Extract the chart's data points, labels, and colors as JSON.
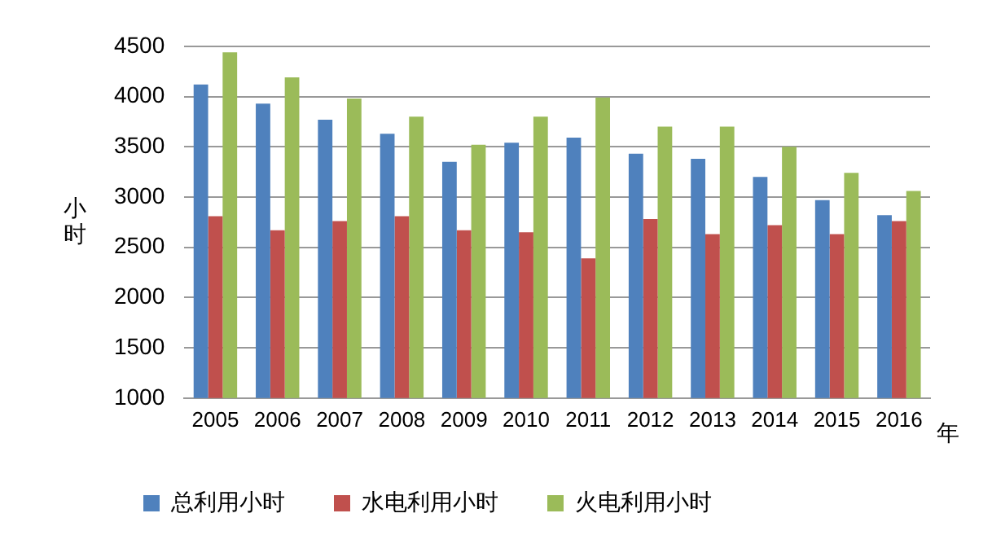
{
  "chart_data": {
    "type": "bar",
    "xlabel": "年",
    "ylabel": "小时",
    "categories": [
      "2005",
      "2006",
      "2007",
      "2008",
      "2009",
      "2010",
      "2011",
      "2012",
      "2013",
      "2014",
      "2015",
      "2016"
    ],
    "series": [
      {
        "name": "总利用小时",
        "color": "#4f81bd",
        "values": [
          4120,
          3930,
          3770,
          3630,
          3350,
          3540,
          3590,
          3430,
          3380,
          3200,
          2970,
          2820
        ]
      },
      {
        "name": "水电利用小时",
        "color": "#c0504d",
        "values": [
          2810,
          2670,
          2760,
          2810,
          2670,
          2650,
          2390,
          2780,
          2630,
          2720,
          2630,
          2760
        ]
      },
      {
        "name": "火电利用小时",
        "color": "#9bbb59",
        "values": [
          4440,
          4190,
          3980,
          3800,
          3520,
          3800,
          3990,
          3700,
          3700,
          3500,
          3240,
          3060
        ]
      }
    ],
    "ylim": [
      1000,
      4500
    ],
    "yticks": [
      1000,
      1500,
      2000,
      2500,
      3000,
      3500,
      4000,
      4500
    ],
    "grid": "y",
    "legend": "bottom"
  }
}
